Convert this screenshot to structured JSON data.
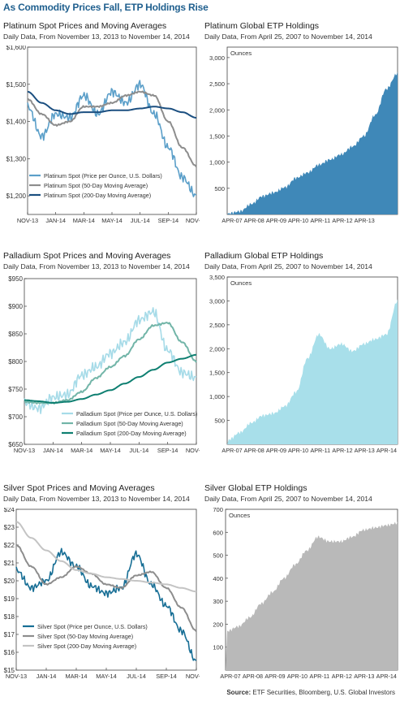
{
  "title": "As Commodity Prices Fall, ETP Holdings Rise",
  "source_label": "Source:",
  "source_text": "ETF Securities, Bloomberg, U.S. Global Investors",
  "chart_data": [
    {
      "type": "line",
      "title": "Platinum Spot Prices and Moving Averages",
      "subtitle": "Daily Data, From November 13, 2013 to November 14, 2014",
      "x_ticks": [
        "NOV-13",
        "JAN-14",
        "MAR-14",
        "MAY-14",
        "JUL-14",
        "SEP-14",
        "NOV-14"
      ],
      "x": [
        "2013-11-13",
        "2013-12-13",
        "2014-01-13",
        "2014-02-13",
        "2014-03-13",
        "2014-04-13",
        "2014-05-13",
        "2014-06-13",
        "2014-07-13",
        "2014-08-13",
        "2014-09-13",
        "2014-10-13",
        "2014-11-13"
      ],
      "y_ticks": [
        "$1,200",
        "$1,300",
        "$1,400",
        "$1,500",
        "$1,600"
      ],
      "ylim": [
        1150,
        1600
      ],
      "grid": false,
      "legend_position": "bottom-left",
      "series": [
        {
          "name": "Platinum Spot (Price per Ounce, U.S. Dollars)",
          "color": "#5b9fc9",
          "values": [
            1440,
            1360,
            1420,
            1410,
            1470,
            1420,
            1480,
            1450,
            1500,
            1420,
            1330,
            1250,
            1200
          ]
        },
        {
          "name": "Platinum Spot (50-Day Moving Average)",
          "color": "#8d8d8d",
          "values": [
            1460,
            1420,
            1390,
            1400,
            1440,
            1440,
            1450,
            1470,
            1480,
            1470,
            1400,
            1330,
            1280
          ]
        },
        {
          "name": "Platinum Spot (200-Day Moving Average)",
          "color": "#1b4f80",
          "values": [
            1480,
            1450,
            1430,
            1420,
            1425,
            1425,
            1430,
            1430,
            1435,
            1440,
            1435,
            1425,
            1410
          ]
        }
      ]
    },
    {
      "type": "area",
      "title": "Platinum Global ETP Holdings",
      "subtitle": "Daily Data, From April 25, 2007 to November 14, 2014",
      "unit_label": "Ounces",
      "x_ticks": [
        "APR-07",
        "APR-08",
        "APR-09",
        "APR-10",
        "APR-11",
        "APR-12",
        "APR-13"
      ],
      "x": [
        "2007-04",
        "2007-10",
        "2008-04",
        "2008-10",
        "2009-04",
        "2009-10",
        "2010-04",
        "2010-10",
        "2011-04",
        "2011-10",
        "2012-04",
        "2012-10",
        "2013-04",
        "2013-10",
        "2014-04",
        "2014-11"
      ],
      "y_ticks": [
        "500",
        "1,000",
        "1,500",
        "2,000",
        "2,500",
        "3,000"
      ],
      "ylim": [
        0,
        3200
      ],
      "color": "#3f88b8",
      "values": [
        20,
        60,
        200,
        350,
        420,
        520,
        700,
        800,
        950,
        1050,
        1150,
        1300,
        1500,
        1900,
        2400,
        2700
      ]
    },
    {
      "type": "line",
      "title": "Palladium Spot Prices and Moving Averages",
      "subtitle": "Daily Data, From November 13, 2013 to November 14, 2014",
      "x_ticks": [
        "NOV-13",
        "JAN-14",
        "MAR-14",
        "MAY-14",
        "JUL-14",
        "SEP-14",
        "NOV-14"
      ],
      "x": [
        "2013-11-13",
        "2013-12-13",
        "2014-01-13",
        "2014-02-13",
        "2014-03-13",
        "2014-04-13",
        "2014-05-13",
        "2014-06-13",
        "2014-07-13",
        "2014-08-13",
        "2014-09-13",
        "2014-10-13",
        "2014-11-13"
      ],
      "y_ticks": [
        "$650",
        "$700",
        "$750",
        "$800",
        "$850",
        "$900",
        "$950"
      ],
      "ylim": [
        650,
        950
      ],
      "grid": false,
      "legend_position": "bottom-right",
      "series": [
        {
          "name": "Palladium Spot (Price per Ounce, U.S. Dollars)",
          "color": "#a6dbe8",
          "values": [
            725,
            715,
            735,
            740,
            775,
            790,
            815,
            835,
            875,
            890,
            820,
            780,
            770
          ]
        },
        {
          "name": "Palladium Spot (50-Day Moving Average)",
          "color": "#72b5a8",
          "values": [
            727,
            725,
            725,
            730,
            745,
            770,
            790,
            810,
            840,
            865,
            870,
            835,
            800
          ]
        },
        {
          "name": "Palladium Spot (200-Day Moving Average)",
          "color": "#0e7f71",
          "values": [
            730,
            728,
            725,
            727,
            732,
            740,
            748,
            760,
            772,
            785,
            798,
            805,
            812
          ]
        }
      ]
    },
    {
      "type": "area",
      "title": "Palladium Global ETP Holdings",
      "subtitle": "Daily Data, From April 25, 2007 to November 14, 2014",
      "unit_label": "Ounces",
      "x_ticks": [
        "APR-07",
        "APR-08",
        "APR-09",
        "APR-10",
        "APR-11",
        "APR-12",
        "APR-13",
        "APR-14"
      ],
      "x": [
        "2007-04",
        "2007-10",
        "2008-04",
        "2008-10",
        "2009-04",
        "2009-10",
        "2010-04",
        "2010-10",
        "2011-04",
        "2011-10",
        "2012-04",
        "2012-10",
        "2013-04",
        "2013-10",
        "2014-04",
        "2014-11"
      ],
      "y_ticks": [
        "500",
        "1,000",
        "1,500",
        "2,000",
        "2,500",
        "3,000",
        "3,500"
      ],
      "ylim": [
        0,
        3500
      ],
      "color": "#a8dfea",
      "values": [
        100,
        250,
        450,
        600,
        650,
        800,
        1100,
        1800,
        2300,
        2000,
        2100,
        1950,
        2100,
        2200,
        2300,
        3000
      ]
    },
    {
      "type": "line",
      "title": "Silver Spot Prices and Moving Averages",
      "subtitle": "Daily Data, From November 13, 2013 to November 14, 2014",
      "x_ticks": [
        "NOV-13",
        "JAN-14",
        "MAR-14",
        "MAY-14",
        "JUL-14",
        "SEP-14",
        "NOV-14"
      ],
      "x": [
        "2013-11-13",
        "2013-12-13",
        "2014-01-13",
        "2014-02-13",
        "2014-03-13",
        "2014-04-13",
        "2014-05-13",
        "2014-06-13",
        "2014-07-13",
        "2014-08-13",
        "2014-09-13",
        "2014-10-13",
        "2014-11-13"
      ],
      "y_ticks": [
        "$15",
        "$16",
        "$17",
        "$18",
        "$19",
        "$20",
        "$21",
        "$22",
        "$23",
        "$24"
      ],
      "ylim": [
        15,
        24
      ],
      "grid": false,
      "legend_position": "bottom-left",
      "series": [
        {
          "name": "Silver Spot (Price per Ounce, U.S. Dollars)",
          "color": "#176e95",
          "values": [
            20.6,
            19.6,
            20.0,
            21.6,
            20.8,
            19.7,
            19.3,
            19.6,
            21.5,
            19.8,
            18.6,
            17.2,
            15.5
          ]
        },
        {
          "name": "Silver Spot (50-Day Moving Average)",
          "color": "#8d8d8d",
          "values": [
            22.0,
            20.8,
            19.8,
            20.2,
            20.8,
            20.4,
            19.8,
            19.6,
            20.3,
            20.5,
            19.6,
            18.5,
            17.2
          ]
        },
        {
          "name": "Silver Spot (200-Day Moving Average)",
          "color": "#c4c4c4",
          "values": [
            23.3,
            22.4,
            21.7,
            21.1,
            20.6,
            20.4,
            20.2,
            20.1,
            20.0,
            19.9,
            19.8,
            19.6,
            19.4
          ]
        }
      ]
    },
    {
      "type": "area",
      "title": "Silver Global ETP Holdings",
      "subtitle": "Daily Data, From April 25, 2007 to November 14, 2014",
      "unit_label": "Ounces",
      "x_ticks": [
        "APR-07",
        "APR-08",
        "APR-09",
        "APR-10",
        "APR-11",
        "APR-12",
        "APR-13",
        "APR-14"
      ],
      "x": [
        "2007-04",
        "2007-10",
        "2008-04",
        "2008-10",
        "2009-04",
        "2009-10",
        "2010-04",
        "2010-10",
        "2011-04",
        "2011-10",
        "2012-04",
        "2012-10",
        "2013-04",
        "2013-10",
        "2014-04",
        "2014-11"
      ],
      "y_ticks": [
        "100",
        "200",
        "300",
        "400",
        "500",
        "600",
        "700"
      ],
      "ylim": [
        0,
        700
      ],
      "color": "#b9b9b9",
      "values": [
        170,
        190,
        230,
        290,
        340,
        400,
        460,
        520,
        580,
        560,
        560,
        580,
        610,
        620,
        630,
        640
      ]
    }
  ]
}
